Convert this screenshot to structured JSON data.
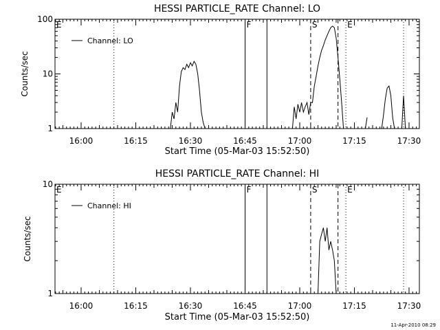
{
  "footer": {
    "timestamp": "11-Apr-2010 08:29"
  },
  "chart_data": [
    {
      "type": "line",
      "title": "HESSI PARTICLE_RATE Channel: LO",
      "xlabel": "Start Time (05-Mar-03 15:52:50)",
      "ylabel": "Counts/sec",
      "y_scale": "log",
      "ylim": [
        1,
        100
      ],
      "y_ticks": [
        {
          "label": "1",
          "value": 1
        },
        {
          "label": "10",
          "value": 10
        },
        {
          "label": "100",
          "value": 100
        }
      ],
      "xlim": [
        "15:52:50",
        "17:32:50"
      ],
      "x_ticks": [
        "16:00",
        "16:15",
        "16:30",
        "16:45",
        "17:00",
        "17:15",
        "17:30"
      ],
      "legend": {
        "entries": [
          "Channel: LO"
        ],
        "position": "top-left"
      },
      "markers": [
        {
          "label": "E",
          "time": "15:52:50",
          "style": "none"
        },
        {
          "label": "",
          "time": "16:09:00",
          "style": "dotted"
        },
        {
          "label": "F",
          "time": "16:45:00",
          "style": "solid"
        },
        {
          "label": "",
          "time": "16:51:00",
          "style": "solid"
        },
        {
          "label": "S",
          "time": "17:03:00",
          "style": "dashed"
        },
        {
          "label": "",
          "time": "17:10:30",
          "style": "dashed"
        },
        {
          "label": "E",
          "time": "17:12:40",
          "style": "dotted"
        },
        {
          "label": "",
          "time": "17:28:30",
          "style": "dotted"
        }
      ],
      "series": [
        {
          "name": "Channel: LO",
          "segments": [
            {
              "x": [
                "16:24:30",
                "16:25:00",
                "16:25:30",
                "16:26:00",
                "16:26:30",
                "16:27:00",
                "16:27:30",
                "16:28:00",
                "16:28:30",
                "16:29:00",
                "16:29:30",
                "16:30:00",
                "16:30:30",
                "16:31:00",
                "16:31:30",
                "16:32:00",
                "16:32:30",
                "16:33:00",
                "16:33:30",
                "16:34:00"
              ],
              "y": [
                1,
                2,
                1.5,
                3,
                2,
                6,
                11,
                13,
                12,
                15,
                13,
                16,
                14,
                17,
                15,
                10,
                5,
                2,
                1.3,
                1
              ]
            },
            {
              "x": [
                "16:58:00",
                "16:58:30",
                "16:59:00",
                "16:59:30",
                "17:00:00",
                "17:00:30",
                "17:01:00",
                "17:01:30",
                "17:02:00",
                "17:02:30",
                "17:03:00",
                "17:03:30",
                "17:04:00",
                "17:04:30",
                "17:05:00",
                "17:05:30",
                "17:06:00",
                "17:06:30",
                "17:07:00",
                "17:07:30",
                "17:08:00",
                "17:08:30",
                "17:09:00",
                "17:09:30",
                "17:10:00",
                "17:10:30",
                "17:11:00",
                "17:11:30",
                "17:12:00"
              ],
              "y": [
                1,
                2.5,
                1.5,
                2.8,
                2,
                3,
                2,
                2.5,
                3,
                1.8,
                3,
                3,
                6,
                9,
                14,
                20,
                27,
                33,
                42,
                50,
                60,
                70,
                75,
                70,
                45,
                20,
                8,
                3,
                1
              ]
            },
            {
              "x": [
                "17:18:00",
                "17:18:30"
              ],
              "y": [
                1,
                1.6
              ]
            },
            {
              "x": [
                "17:22:30",
                "17:23:00",
                "17:23:30",
                "17:24:00",
                "17:24:30",
                "17:25:00",
                "17:25:30",
                "17:26:00"
              ],
              "y": [
                1,
                1.8,
                3.5,
                5.5,
                6,
                4,
                1.6,
                1
              ]
            },
            {
              "x": [
                "17:28:00",
                "17:28:30",
                "17:29:00"
              ],
              "y": [
                1,
                4,
                1
              ]
            }
          ]
        }
      ]
    },
    {
      "type": "line",
      "title": "HESSI PARTICLE_RATE Channel: HI",
      "xlabel": "Start Time (05-Mar-03 15:52:50)",
      "ylabel": "Counts/sec",
      "y_scale": "log",
      "ylim": [
        1,
        10
      ],
      "y_ticks": [
        {
          "label": "1",
          "value": 1
        },
        {
          "label": "10",
          "value": 10
        }
      ],
      "xlim": [
        "15:52:50",
        "17:32:50"
      ],
      "x_ticks": [
        "16:00",
        "16:15",
        "16:30",
        "16:45",
        "17:00",
        "17:15",
        "17:30"
      ],
      "legend": {
        "entries": [
          "Channel: HI"
        ],
        "position": "top-left"
      },
      "markers": [
        {
          "label": "E",
          "time": "15:52:50",
          "style": "none"
        },
        {
          "label": "",
          "time": "16:09:00",
          "style": "dotted"
        },
        {
          "label": "F",
          "time": "16:45:00",
          "style": "solid"
        },
        {
          "label": "",
          "time": "16:51:00",
          "style": "solid"
        },
        {
          "label": "S",
          "time": "17:03:00",
          "style": "dashed"
        },
        {
          "label": "",
          "time": "17:10:30",
          "style": "dashed"
        },
        {
          "label": "E",
          "time": "17:12:40",
          "style": "dotted"
        },
        {
          "label": "",
          "time": "17:28:30",
          "style": "dotted"
        }
      ],
      "series": [
        {
          "name": "Channel: HI",
          "segments": [
            {
              "x": [
                "17:05:00",
                "17:05:30",
                "17:06:00",
                "17:06:30",
                "17:07:00",
                "17:07:30",
                "17:08:00",
                "17:08:30",
                "17:09:00",
                "17:09:30",
                "17:10:00"
              ],
              "y": [
                1,
                3,
                3.5,
                4,
                3,
                4,
                2.5,
                3,
                2.5,
                2,
                1
              ]
            }
          ]
        }
      ]
    }
  ]
}
